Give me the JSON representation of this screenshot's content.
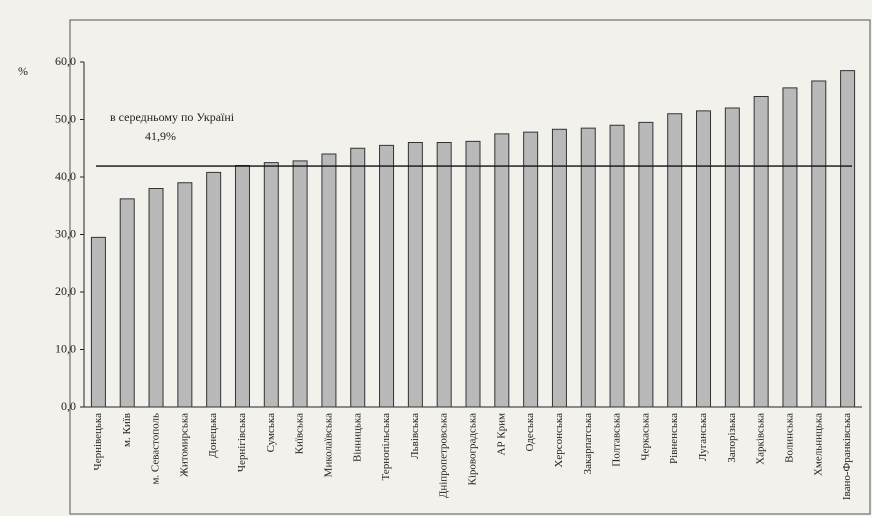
{
  "chart_data": {
    "type": "bar",
    "y_label": "%",
    "annotation": "в середньому по Україні",
    "average": {
      "value": 41.9,
      "label": "41,9%"
    },
    "categories": [
      "Чернівецька",
      "м. Київ",
      "м. Севастополь",
      "Житомирська",
      "Донецька",
      "Чернігівська",
      "Сумська",
      "Київська",
      "Миколаївська",
      "Вінницька",
      "Тернопільська",
      "Львівська",
      "Дніпропетровська",
      "Кіровоградська",
      "АР Крим",
      "Одеська",
      "Херсонська",
      "Закарпатська",
      "Полтавська",
      "Черкаська",
      "Рівненська",
      "Луганська",
      "Запорізька",
      "Харківська",
      "Волинська",
      "Хмельницька",
      "Івано-Франківська"
    ],
    "values": [
      29.5,
      36.2,
      38.0,
      39.0,
      40.8,
      42.0,
      42.5,
      42.8,
      44.0,
      45.0,
      45.5,
      46.0,
      46.0,
      46.2,
      47.5,
      47.8,
      48.3,
      48.5,
      49.0,
      49.5,
      51.0,
      51.5,
      52.0,
      54.0,
      55.5,
      56.7,
      58.5
    ],
    "color": "#b9b9b9",
    "ylim": [
      0,
      60
    ],
    "yticks": [
      {
        "value": 0,
        "label": "0,0"
      },
      {
        "value": 10,
        "label": "10,0"
      },
      {
        "value": 20,
        "label": "20,0"
      },
      {
        "value": 30,
        "label": "30,0"
      },
      {
        "value": 40,
        "label": "40,0"
      },
      {
        "value": 50,
        "label": "50,0"
      },
      {
        "value": 60,
        "label": "60,0"
      }
    ]
  }
}
